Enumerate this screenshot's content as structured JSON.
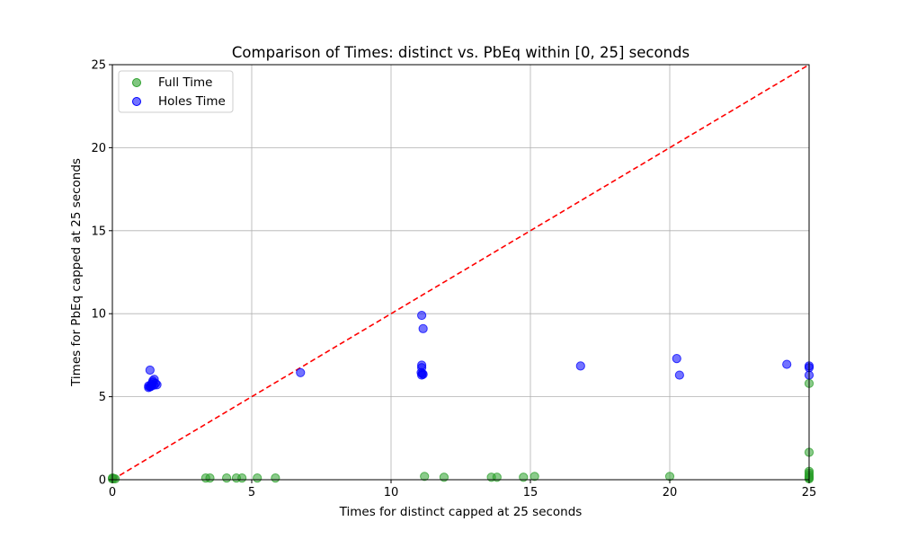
{
  "chart_data": {
    "type": "scatter",
    "title": "Comparison of Times: distinct vs. PbEq within [0, 25] seconds",
    "xlabel": "Times for distinct capped at 25 seconds",
    "ylabel": "Times for PbEq capped at 25 seconds",
    "xlim": [
      0,
      25
    ],
    "ylim": [
      0,
      25
    ],
    "xticks": [
      "0",
      "5",
      "10",
      "15",
      "20",
      "25"
    ],
    "yticks": [
      "0",
      "5",
      "10",
      "15",
      "20",
      "25"
    ],
    "grid": true,
    "legend_position": "top-left",
    "reference_line": {
      "from": [
        0,
        0
      ],
      "to": [
        25,
        25
      ],
      "color": "#ff0000",
      "style": "dashed"
    },
    "series": [
      {
        "name": "Full Time",
        "color": "#2ca02c",
        "points": [
          [
            0.0,
            0.05
          ],
          [
            0.0,
            0.1
          ],
          [
            0.05,
            0.08
          ],
          [
            0.1,
            0.05
          ],
          [
            3.35,
            0.1
          ],
          [
            3.5,
            0.1
          ],
          [
            4.1,
            0.1
          ],
          [
            4.45,
            0.1
          ],
          [
            4.65,
            0.1
          ],
          [
            5.2,
            0.1
          ],
          [
            5.85,
            0.1
          ],
          [
            11.2,
            0.2
          ],
          [
            11.9,
            0.15
          ],
          [
            13.6,
            0.15
          ],
          [
            13.8,
            0.15
          ],
          [
            14.75,
            0.15
          ],
          [
            15.15,
            0.2
          ],
          [
            20.0,
            0.2
          ],
          [
            25.0,
            5.8
          ],
          [
            25.0,
            1.65
          ],
          [
            25.0,
            0.5
          ],
          [
            25.0,
            0.4
          ],
          [
            25.0,
            0.3
          ],
          [
            25.0,
            0.2
          ],
          [
            25.0,
            0.15
          ],
          [
            25.0,
            0.1
          ],
          [
            25.0,
            0.05
          ]
        ]
      },
      {
        "name": "Holes Time",
        "color": "#0000ff",
        "points": [
          [
            1.35,
            6.6
          ],
          [
            1.5,
            6.05
          ],
          [
            1.45,
            5.95
          ],
          [
            1.55,
            5.8
          ],
          [
            1.5,
            5.7
          ],
          [
            1.35,
            5.6
          ],
          [
            1.3,
            5.65
          ],
          [
            1.4,
            5.75
          ],
          [
            1.45,
            5.85
          ],
          [
            1.3,
            5.55
          ],
          [
            1.38,
            5.62
          ],
          [
            1.42,
            5.68
          ],
          [
            1.6,
            5.72
          ],
          [
            6.75,
            6.45
          ],
          [
            11.1,
            9.9
          ],
          [
            11.15,
            9.1
          ],
          [
            11.1,
            6.9
          ],
          [
            11.1,
            6.75
          ],
          [
            11.12,
            6.4
          ],
          [
            11.1,
            6.3
          ],
          [
            11.15,
            6.35
          ],
          [
            11.08,
            6.45
          ],
          [
            16.8,
            6.85
          ],
          [
            20.25,
            7.3
          ],
          [
            20.35,
            6.3
          ],
          [
            24.2,
            6.95
          ],
          [
            25.0,
            6.85
          ],
          [
            25.0,
            6.75
          ],
          [
            25.0,
            6.3
          ]
        ]
      }
    ]
  }
}
